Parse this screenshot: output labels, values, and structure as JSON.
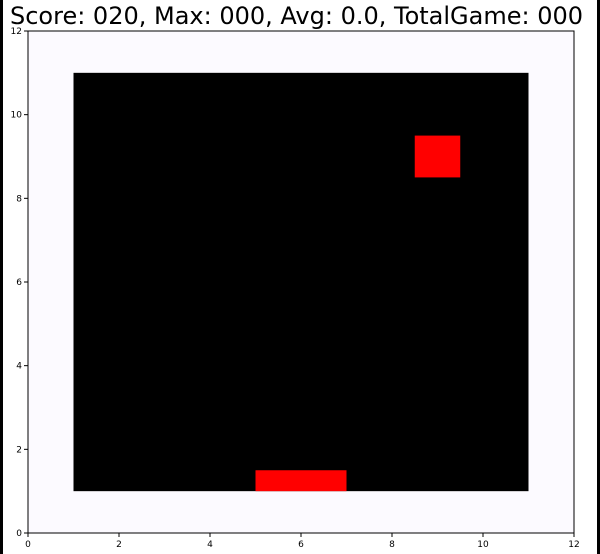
{
  "hud": {
    "title": "Score: 020, Max: 000, Avg: 0.0, TotalGame: 000"
  },
  "chart_data": {
    "type": "game-board",
    "xlim": [
      0,
      12
    ],
    "ylim": [
      0,
      12
    ],
    "x_ticks": [
      "0",
      "2",
      "4",
      "6",
      "8",
      "10",
      "12"
    ],
    "y_ticks": [
      "0",
      "2",
      "4",
      "6",
      "8",
      "10",
      "12"
    ],
    "grid": false,
    "background_color": "#fcfaff",
    "board": {
      "x": [
        1,
        11
      ],
      "y": [
        1,
        11
      ],
      "color": "#000000"
    },
    "ball": {
      "x": [
        8.5,
        9.5
      ],
      "y": [
        8.5,
        9.5
      ],
      "color": "#ff0000"
    },
    "paddle": {
      "x": [
        5,
        7
      ],
      "y": [
        1,
        1.5
      ],
      "color": "#ff0000"
    }
  }
}
